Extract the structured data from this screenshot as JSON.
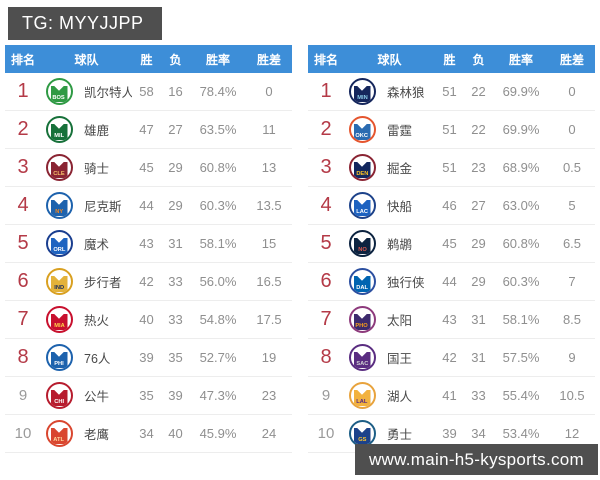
{
  "top_bar": {
    "text": "TG: MYYJJPP",
    "bg": "#4f4f4f"
  },
  "bottom_bar": {
    "text": "www.main-h5-kysports.com",
    "bg": "#4f4f4f"
  },
  "columns": [
    "排名",
    "球队",
    "胜",
    "负",
    "胜率",
    "胜差"
  ],
  "colors": {
    "header_bg": "#3d8ed8",
    "header_text": "#ffffff",
    "rank_red": "#b43a47",
    "rank_gray": "#9a9a9a",
    "team_text": "#4a4a4a",
    "stat_text": "#8f8f8f",
    "row_divider": "#ededed"
  },
  "tables": [
    {
      "conference": "east",
      "rows": [
        {
          "rank": "1",
          "team": "凯尔特人",
          "abbr": "BOS",
          "wins": "58",
          "losses": "16",
          "win_pct": "78.4%",
          "games_behind": "0",
          "ring": "#2f9a44",
          "jersey": "#2f9a44",
          "text": "#ffffff",
          "in_playoffs": true
        },
        {
          "rank": "2",
          "team": "雄鹿",
          "abbr": "MIL",
          "wins": "47",
          "losses": "27",
          "win_pct": "63.5%",
          "games_behind": "11",
          "ring": "#17713a",
          "jersey": "#17713a",
          "text": "#ffffff",
          "in_playoffs": true
        },
        {
          "rank": "3",
          "team": "骑士",
          "abbr": "CLE",
          "wins": "45",
          "losses": "29",
          "win_pct": "60.8%",
          "games_behind": "13",
          "ring": "#8a2433",
          "jersey": "#8a2433",
          "text": "#f6c06a",
          "in_playoffs": true
        },
        {
          "rank": "4",
          "team": "尼克斯",
          "abbr": "NY",
          "wins": "44",
          "losses": "29",
          "win_pct": "60.3%",
          "games_behind": "13.5",
          "ring": "#1d62ad",
          "jersey": "#1d62ad",
          "text": "#f5871f",
          "in_playoffs": true
        },
        {
          "rank": "5",
          "team": "魔术",
          "abbr": "ORL",
          "wins": "43",
          "losses": "31",
          "win_pct": "58.1%",
          "games_behind": "15",
          "ring": "#1a3e8f",
          "jersey": "#1e63c0",
          "text": "#ffffff",
          "in_playoffs": true
        },
        {
          "rank": "6",
          "team": "步行者",
          "abbr": "IND",
          "wins": "42",
          "losses": "33",
          "win_pct": "56.0%",
          "games_behind": "16.5",
          "ring": "#d9a020",
          "jersey": "#e3b23a",
          "text": "#12275e",
          "in_playoffs": true
        },
        {
          "rank": "7",
          "team": "热火",
          "abbr": "MIA",
          "wins": "40",
          "losses": "33",
          "win_pct": "54.8%",
          "games_behind": "17.5",
          "ring": "#c8102e",
          "jersey": "#c8102e",
          "text": "#ffd54a",
          "in_playoffs": true
        },
        {
          "rank": "8",
          "team": "76人",
          "abbr": "PHI",
          "wins": "39",
          "losses": "35",
          "win_pct": "52.7%",
          "games_behind": "19",
          "ring": "#1d62ad",
          "jersey": "#1d62ad",
          "text": "#ffffff",
          "in_playoffs": true
        },
        {
          "rank": "9",
          "team": "公牛",
          "abbr": "CHI",
          "wins": "35",
          "losses": "39",
          "win_pct": "47.3%",
          "games_behind": "23",
          "ring": "#b71c2e",
          "jersey": "#b71c2e",
          "text": "#ffffff",
          "in_playoffs": false
        },
        {
          "rank": "10",
          "team": "老鹰",
          "abbr": "ATL",
          "wins": "34",
          "losses": "40",
          "win_pct": "45.9%",
          "games_behind": "24",
          "ring": "#d9462f",
          "jersey": "#d9462f",
          "text": "#ffd9a0",
          "in_playoffs": false
        }
      ]
    },
    {
      "conference": "west",
      "rows": [
        {
          "rank": "1",
          "team": "森林狼",
          "abbr": "MIN",
          "wins": "51",
          "losses": "22",
          "win_pct": "69.9%",
          "games_behind": "0",
          "ring": "#15265c",
          "jersey": "#15265c",
          "text": "#8ccdea",
          "in_playoffs": true
        },
        {
          "rank": "2",
          "team": "雷霆",
          "abbr": "OKC",
          "wins": "51",
          "losses": "22",
          "win_pct": "69.9%",
          "games_behind": "0",
          "ring": "#e5552e",
          "jersey": "#2b6bb1",
          "text": "#ffffff",
          "in_playoffs": true
        },
        {
          "rank": "3",
          "team": "掘金",
          "abbr": "DEN",
          "wins": "51",
          "losses": "23",
          "win_pct": "68.9%",
          "games_behind": "0.5",
          "ring": "#8a2433",
          "jersey": "#12275e",
          "text": "#fec524",
          "in_playoffs": true
        },
        {
          "rank": "4",
          "team": "快船",
          "abbr": "LAC",
          "wins": "46",
          "losses": "27",
          "win_pct": "63.0%",
          "games_behind": "5",
          "ring": "#1d428a",
          "jersey": "#1d62c0",
          "text": "#ffffff",
          "in_playoffs": true
        },
        {
          "rank": "5",
          "team": "鹈鹕",
          "abbr": "NO",
          "wins": "45",
          "losses": "29",
          "win_pct": "60.8%",
          "games_behind": "6.5",
          "ring": "#0c2340",
          "jersey": "#0c2340",
          "text": "#e05a4e",
          "in_playoffs": true
        },
        {
          "rank": "6",
          "team": "独行侠",
          "abbr": "DAL",
          "wins": "44",
          "losses": "29",
          "win_pct": "60.3%",
          "games_behind": "7",
          "ring": "#2b4fa0",
          "jersey": "#0064b1",
          "text": "#ffffff",
          "in_playoffs": true
        },
        {
          "rank": "7",
          "team": "太阳",
          "abbr": "PHO",
          "wins": "43",
          "losses": "31",
          "win_pct": "58.1%",
          "games_behind": "8.5",
          "ring": "#8d3a7c",
          "jersey": "#3d2a6d",
          "text": "#f9a01b",
          "in_playoffs": true
        },
        {
          "rank": "8",
          "team": "国王",
          "abbr": "SAC",
          "wins": "42",
          "losses": "31",
          "win_pct": "57.5%",
          "games_behind": "9",
          "ring": "#5a2d81",
          "jersey": "#5a2d81",
          "text": "#cfd0d2",
          "in_playoffs": true
        },
        {
          "rank": "9",
          "team": "湖人",
          "abbr": "LAL",
          "wins": "41",
          "losses": "33",
          "win_pct": "55.4%",
          "games_behind": "10.5",
          "ring": "#e8a33d",
          "jersey": "#f2b23e",
          "text": "#552583",
          "in_playoffs": false
        },
        {
          "rank": "10",
          "team": "勇士",
          "abbr": "GS",
          "wins": "39",
          "losses": "34",
          "win_pct": "53.4%",
          "games_behind": "12",
          "ring": "#1d5e86",
          "jersey": "#1d428a",
          "text": "#ffc72c",
          "in_playoffs": false
        }
      ]
    }
  ]
}
